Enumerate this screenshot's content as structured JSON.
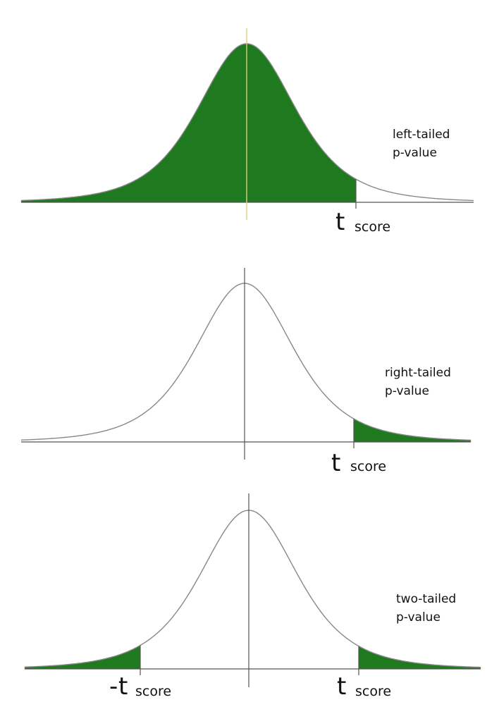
{
  "colors": {
    "fill": "#1f7a1f",
    "curve_stroke": "#888888",
    "axis": "#555555",
    "background": "#ffffff"
  },
  "panels": [
    {
      "id": "left",
      "label_lines": [
        "left-tailed",
        "p-value"
      ],
      "shaded": "cdf_below_t",
      "markers": [
        {
          "sign": "",
          "symbol": "t",
          "subscript": "score"
        }
      ]
    },
    {
      "id": "right",
      "label_lines": [
        "right-tailed",
        "p-value"
      ],
      "shaded": "upper_tail",
      "markers": [
        {
          "sign": "",
          "symbol": "t",
          "subscript": "score"
        }
      ]
    },
    {
      "id": "two",
      "label_lines": [
        "two-tailed",
        "p-value"
      ],
      "shaded": "both_tails",
      "markers": [
        {
          "sign": "-",
          "symbol": "t",
          "subscript": "score"
        },
        {
          "sign": "",
          "symbol": "t",
          "subscript": "score"
        }
      ]
    }
  ]
}
